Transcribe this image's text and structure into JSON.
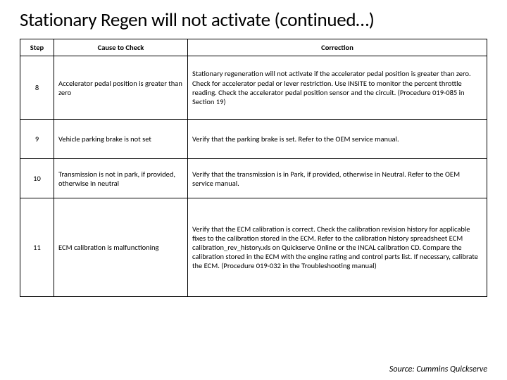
{
  "title": "Stationary Regen will not activate (continued…)",
  "columns": [
    "Step",
    "Cause to Check",
    "Correction"
  ],
  "rows": [
    {
      "step": "8",
      "cause": "Accelerator pedal position is greater than zero",
      "correction": "Stationary regeneration will not activate if the accelerator pedal position is greater than zero. Check for accelerator pedal or lever restriction. Use INSITE to monitor the percent throttle reading. Check the accelerator pedal position sensor and the circuit. (Procedure 019-085 in Section 19)"
    },
    {
      "step": "9",
      "cause": "Vehicle parking brake is not set",
      "correction": "Verify that the parking brake is set. Refer to the OEM service manual."
    },
    {
      "step": "10",
      "cause": "Transmission is not in park, if provided, otherwise in neutral",
      "correction": "Verify that the transmission is in Park, if provided, otherwise in Neutral. Refer to the OEM service manual."
    },
    {
      "step": "11",
      "cause": "ECM calibration is malfunctioning",
      "correction": "Verify that the ECM calibration is correct. Check the calibration revision history for applicable fixes to the calibration stored in the ECM. Refer to the calibration history spreadsheet ECM calibration_rev_history.xls on Quickserve Online or the INCAL calibration CD. Compare the calibration stored in the ECM with the engine rating and control parts list. If necessary, calibrate the ECM. (Procedure 019-032 in the Troubleshooting manual)"
    }
  ],
  "source": "Source: Cummins Quickserve"
}
